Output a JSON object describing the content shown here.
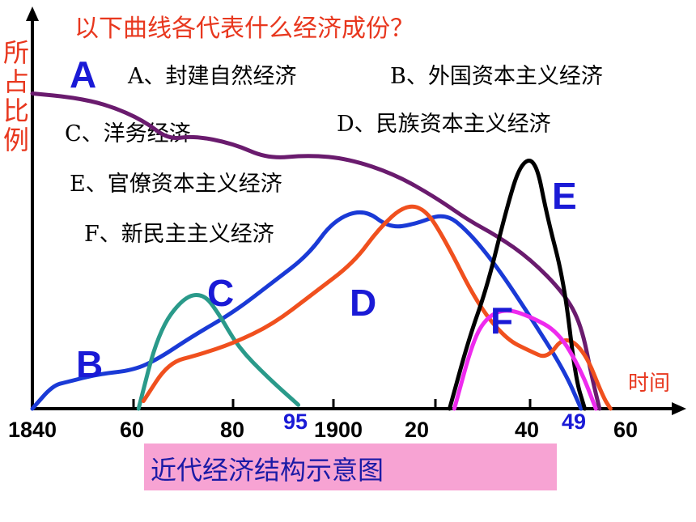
{
  "title": "以下曲线各代表什么经济成份？",
  "ylabel_chars": [
    "所",
    "占",
    "比",
    "例"
  ],
  "xlabel": "时间",
  "caption": "近代经济结构示意图",
  "legend": [
    {
      "text": "A、封建自然经济"
    },
    {
      "text": "B、外国资本主义经济"
    },
    {
      "text": "C、洋务经济"
    },
    {
      "text": "D、民族资本主义经济"
    },
    {
      "text": "E、官僚资本主义经济"
    },
    {
      "text": "F、新民主主义经济"
    }
  ],
  "chart_data": {
    "type": "line",
    "x_ticks": [
      "1840",
      "60",
      "80",
      "95",
      "1900",
      "20",
      "40",
      "49",
      "60"
    ],
    "x_tick_colors": [
      "#000000",
      "#000000",
      "#000000",
      "#1a1ad6",
      "#000000",
      "#000000",
      "#000000",
      "#1a1ad6",
      "#000000"
    ],
    "xlabel": "时间",
    "ylabel": "所占比例",
    "series": [
      {
        "name": "A",
        "color": "#6a1b6e",
        "points": [
          [
            1840,
            0.82
          ],
          [
            1848,
            0.81
          ],
          [
            1855,
            0.79
          ],
          [
            1862,
            0.75
          ],
          [
            1867,
            0.7
          ],
          [
            1872,
            0.71
          ],
          [
            1880,
            0.69
          ],
          [
            1887,
            0.65
          ],
          [
            1895,
            0.66
          ],
          [
            1903,
            0.65
          ],
          [
            1912,
            0.61
          ],
          [
            1920,
            0.55
          ],
          [
            1927,
            0.49
          ],
          [
            1933,
            0.45
          ],
          [
            1940,
            0.39
          ],
          [
            1946,
            0.3
          ],
          [
            1949,
            0.22
          ],
          [
            1952,
            0.08
          ],
          [
            1954,
            0.0
          ]
        ]
      },
      {
        "name": "B",
        "color": "#1a3ad6",
        "points": [
          [
            1840,
            0.0
          ],
          [
            1844,
            0.06
          ],
          [
            1847,
            0.07
          ],
          [
            1853,
            0.09
          ],
          [
            1860,
            0.1
          ],
          [
            1865,
            0.13
          ],
          [
            1872,
            0.19
          ],
          [
            1880,
            0.25
          ],
          [
            1888,
            0.33
          ],
          [
            1895,
            0.4
          ],
          [
            1900,
            0.49
          ],
          [
            1906,
            0.52
          ],
          [
            1911,
            0.47
          ],
          [
            1916,
            0.48
          ],
          [
            1922,
            0.51
          ],
          [
            1927,
            0.46
          ],
          [
            1933,
            0.37
          ],
          [
            1940,
            0.24
          ],
          [
            1946,
            0.1
          ],
          [
            1949,
            0.0
          ]
        ]
      },
      {
        "name": "C",
        "color": "#2a9a8a",
        "points": [
          [
            1861,
            0.0
          ],
          [
            1865,
            0.2
          ],
          [
            1870,
            0.29
          ],
          [
            1874,
            0.3
          ],
          [
            1877,
            0.25
          ],
          [
            1881,
            0.16
          ],
          [
            1887,
            0.08
          ],
          [
            1893,
            0.01
          ]
        ]
      },
      {
        "name": "D",
        "color": "#f0501e",
        "points": [
          [
            1862,
            0.02
          ],
          [
            1867,
            0.12
          ],
          [
            1873,
            0.14
          ],
          [
            1880,
            0.17
          ],
          [
            1888,
            0.22
          ],
          [
            1896,
            0.3
          ],
          [
            1904,
            0.38
          ],
          [
            1909,
            0.47
          ],
          [
            1914,
            0.53
          ],
          [
            1918,
            0.52
          ],
          [
            1922,
            0.44
          ],
          [
            1929,
            0.27
          ],
          [
            1935,
            0.18
          ],
          [
            1940,
            0.15
          ],
          [
            1943,
            0.13
          ],
          [
            1946,
            0.19
          ],
          [
            1950,
            0.15
          ],
          [
            1955,
            0.03
          ],
          [
            1957,
            0.0
          ]
        ]
      },
      {
        "name": "E",
        "color": "#000000",
        "points": [
          [
            1923,
            0.0
          ],
          [
            1927,
            0.18
          ],
          [
            1931,
            0.32
          ],
          [
            1935,
            0.52
          ],
          [
            1938,
            0.64
          ],
          [
            1941,
            0.65
          ],
          [
            1943,
            0.5
          ],
          [
            1946,
            0.33
          ],
          [
            1948,
            0.08
          ],
          [
            1950,
            0.0
          ]
        ]
      },
      {
        "name": "F",
        "color": "#ee2aee",
        "points": [
          [
            1924,
            0.0
          ],
          [
            1928,
            0.18
          ],
          [
            1931,
            0.24
          ],
          [
            1935,
            0.26
          ],
          [
            1940,
            0.24
          ],
          [
            1945,
            0.2
          ],
          [
            1949,
            0.1
          ],
          [
            1953,
            0.0
          ]
        ]
      }
    ],
    "series_labels": [
      "A",
      "B",
      "C",
      "D",
      "E",
      "F"
    ]
  }
}
